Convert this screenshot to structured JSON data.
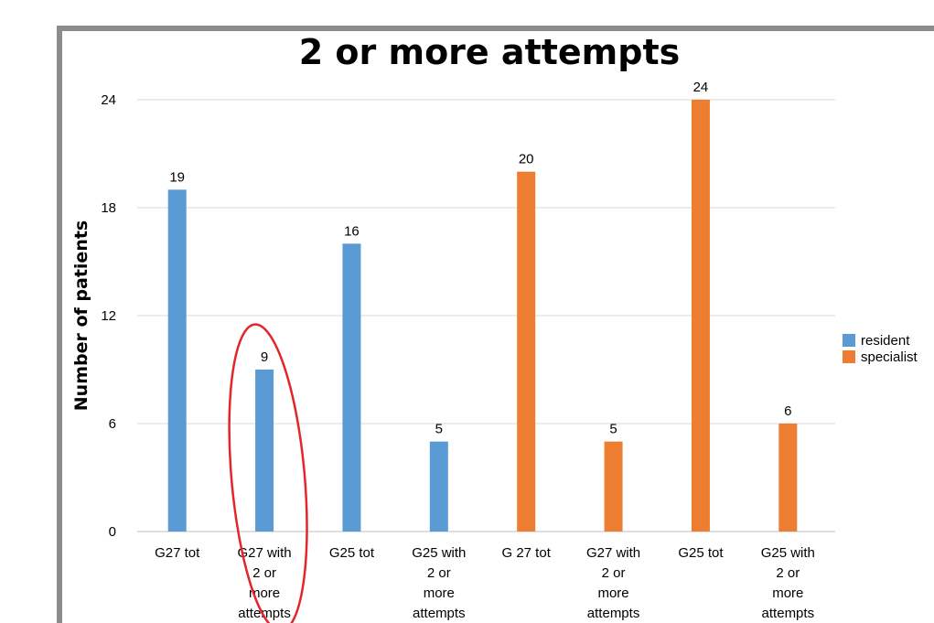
{
  "chart_data": {
    "type": "bar",
    "title": "2 or more attempts",
    "ylabel": "Number of patients",
    "xlabel": "",
    "ylim": [
      0,
      24
    ],
    "yticks": [
      0,
      6,
      12,
      18,
      24
    ],
    "grid": true,
    "legend_position": "right",
    "categories": [
      [
        "G27 tot"
      ],
      [
        "G27 with",
        "2 or",
        "more",
        "attempts"
      ],
      [
        "G25 tot"
      ],
      [
        "G25 with",
        "2 or",
        "more",
        "attempts"
      ],
      [
        "G 27 tot"
      ],
      [
        "G27 with",
        "2 or",
        "more",
        "attempts"
      ],
      [
        "G25 tot"
      ],
      [
        "G25 with",
        "2 or",
        "more",
        "attempts"
      ]
    ],
    "series": [
      {
        "name": "resident",
        "color": "#5B9BD5",
        "values": [
          19,
          9,
          16,
          5,
          null,
          null,
          null,
          null
        ]
      },
      {
        "name": "specialist",
        "color": "#ED7D31",
        "values": [
          null,
          null,
          null,
          null,
          20,
          5,
          24,
          6
        ]
      }
    ],
    "annotation": {
      "shape": "ellipse",
      "color": "#E3262A",
      "target_category_index": 1
    }
  }
}
